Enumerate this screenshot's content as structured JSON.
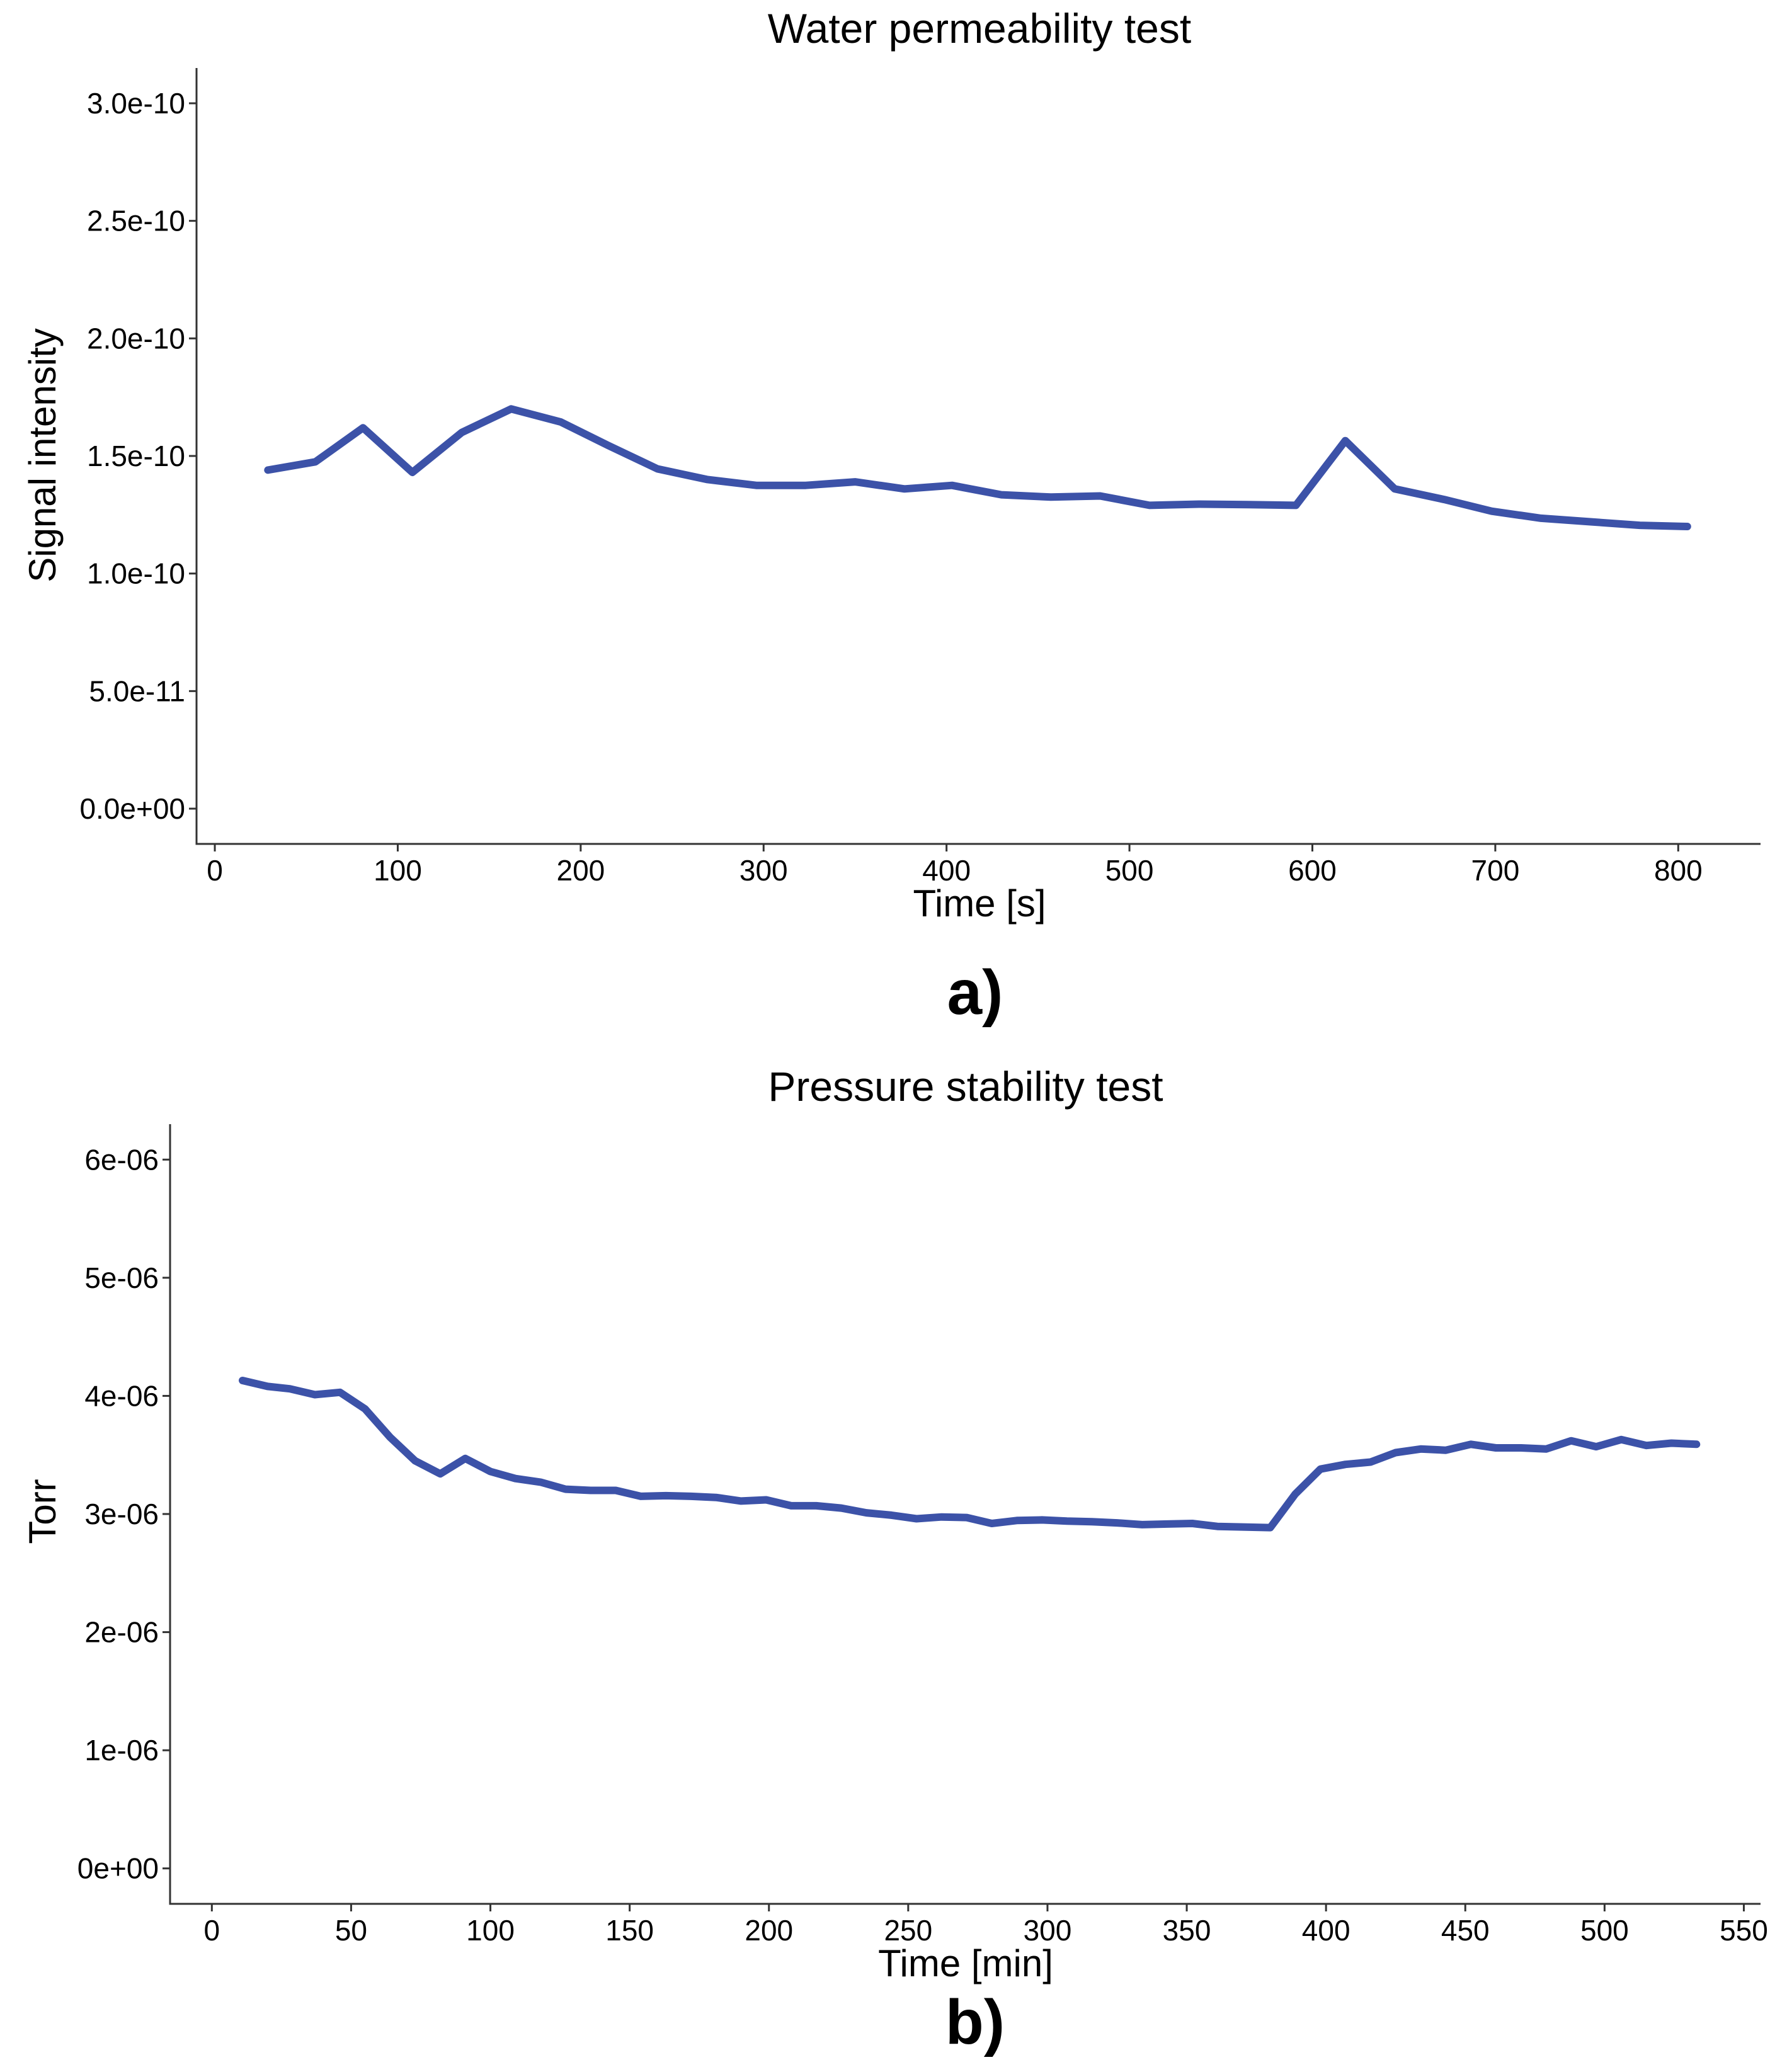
{
  "colors": {
    "series": "#3c52a8",
    "axis": "#333333",
    "background": "#ffffff"
  },
  "chart_data": [
    {
      "panel": "a)",
      "type": "line",
      "title": "Water permeability test",
      "xlabel": "Time [s]",
      "ylabel": "Signal intensity",
      "xlim": [
        -10,
        845
      ],
      "ylim": [
        -1.5e-11,
        3.15e-10
      ],
      "xticks": [
        0,
        100,
        200,
        300,
        400,
        500,
        600,
        700,
        800
      ],
      "xtick_labels": [
        "0",
        "100",
        "200",
        "300",
        "400",
        "500",
        "600",
        "700",
        "800"
      ],
      "yticks": [
        0,
        5e-11,
        1e-10,
        1.5e-10,
        2e-10,
        2.5e-10,
        3e-10
      ],
      "ytick_labels": [
        "0.0e+00",
        "5.0e-11",
        "1.0e-10",
        "1.5e-10",
        "2.0e-10",
        "2.5e-10",
        "3.0e-10"
      ],
      "grid": false,
      "series": [
        {
          "x": [
            29,
            55,
            81,
            108,
            135,
            162,
            189,
            215,
            242,
            269,
            296,
            323,
            350,
            377,
            403,
            430,
            457,
            484,
            511,
            538,
            565,
            591,
            618,
            645,
            672,
            698,
            725,
            752,
            779,
            805
          ],
          "y": [
            1.44e-10,
            1.475e-10,
            1.62e-10,
            1.43e-10,
            1.6e-10,
            1.7e-10,
            1.645e-10,
            1.545e-10,
            1.445e-10,
            1.4e-10,
            1.375e-10,
            1.375e-10,
            1.39e-10,
            1.36e-10,
            1.375e-10,
            1.335e-10,
            1.325e-10,
            1.33e-10,
            1.29e-10,
            1.295e-10,
            1.293e-10,
            1.29e-10,
            1.565e-10,
            1.36e-10,
            1.315e-10,
            1.265e-10,
            1.235e-10,
            1.22e-10,
            1.205e-10,
            1.2e-10
          ]
        }
      ]
    },
    {
      "panel": "b)",
      "type": "line",
      "title": "Pressure stability test",
      "xlabel": "Time [min]",
      "ylabel": "Torr",
      "xlim": [
        -15,
        556
      ],
      "ylim": [
        -3e-07,
        6.3e-06
      ],
      "xticks": [
        0,
        50,
        100,
        150,
        200,
        250,
        300,
        350,
        400,
        450,
        500,
        550
      ],
      "xtick_labels": [
        "0",
        "50",
        "100",
        "150",
        "200",
        "250",
        "300",
        "350",
        "400",
        "450",
        "500",
        "550"
      ],
      "yticks": [
        0,
        1e-06,
        2e-06,
        3e-06,
        4e-06,
        5e-06,
        6e-06
      ],
      "ytick_labels": [
        "0e+00",
        "1e-06",
        "2e-06",
        "3e-06",
        "4e-06",
        "5e-06",
        "6e-06"
      ],
      "grid": false,
      "series": [
        {
          "x": [
            11,
            20,
            28,
            37,
            46,
            55,
            64,
            73,
            82,
            91,
            100,
            109,
            118,
            127,
            136,
            145,
            154,
            163,
            172,
            181,
            190,
            199,
            208,
            217,
            226,
            235,
            244,
            253,
            262,
            271,
            280,
            289,
            298,
            307,
            316,
            325,
            334,
            343,
            352,
            361,
            370,
            380,
            389,
            398,
            407,
            416,
            425,
            434,
            443,
            452,
            461,
            470,
            479,
            488,
            497,
            506,
            515,
            524,
            533
          ],
          "y": [
            4.13e-06,
            4.08e-06,
            4.06e-06,
            4.01e-06,
            4.03e-06,
            3.89e-06,
            3.65e-06,
            3.45e-06,
            3.34e-06,
            3.47e-06,
            3.36e-06,
            3.3e-06,
            3.27e-06,
            3.21e-06,
            3.2e-06,
            3.2e-06,
            3.15e-06,
            3.155e-06,
            3.15e-06,
            3.14e-06,
            3.11e-06,
            3.12e-06,
            3.07e-06,
            3.07e-06,
            3.05e-06,
            3.01e-06,
            2.99e-06,
            2.96e-06,
            2.975e-06,
            2.97e-06,
            2.92e-06,
            2.945e-06,
            2.95e-06,
            2.94e-06,
            2.935e-06,
            2.925e-06,
            2.91e-06,
            2.915e-06,
            2.92e-06,
            2.895e-06,
            2.89e-06,
            2.885e-06,
            3.17e-06,
            3.38e-06,
            3.42e-06,
            3.44e-06,
            3.52e-06,
            3.55e-06,
            3.54e-06,
            3.59e-06,
            3.56e-06,
            3.56e-06,
            3.55e-06,
            3.62e-06,
            3.57e-06,
            3.63e-06,
            3.58e-06,
            3.6e-06,
            3.59e-06
          ]
        }
      ]
    }
  ]
}
